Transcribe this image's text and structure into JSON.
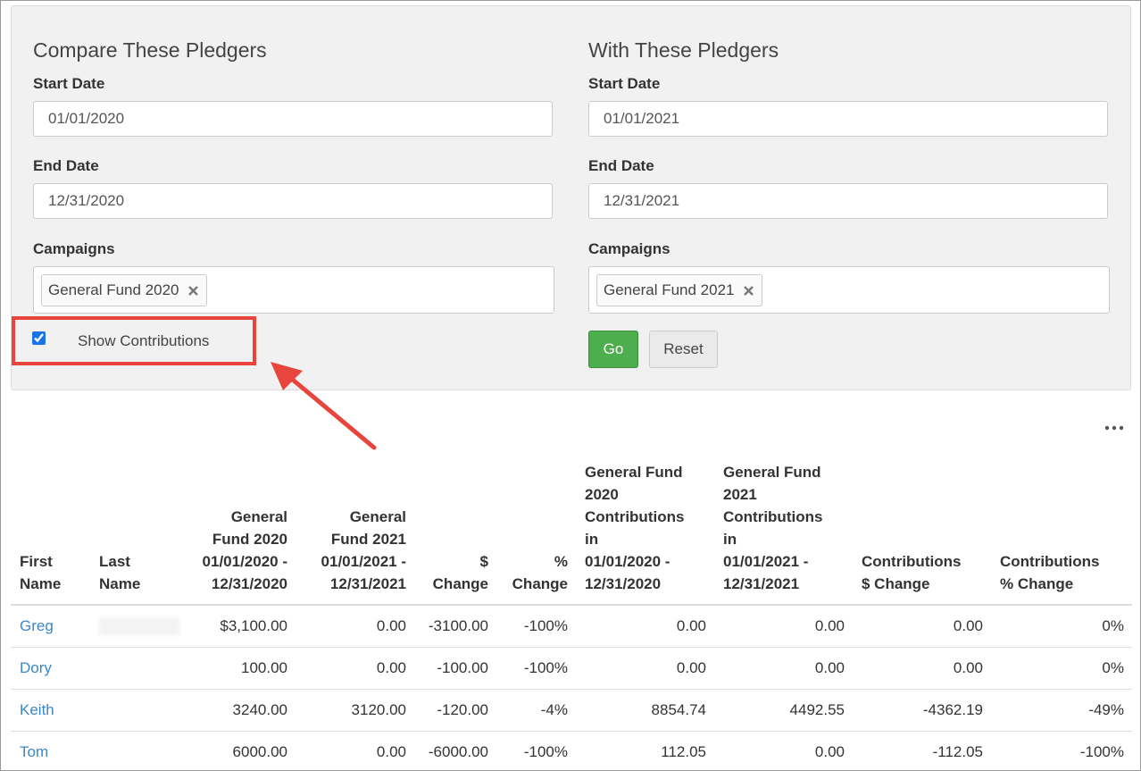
{
  "left": {
    "title": "Compare These Pledgers",
    "start_label": "Start Date",
    "start": "01/01/2020",
    "end_label": "End Date",
    "end": "12/31/2020",
    "campaigns_label": "Campaigns",
    "campaign": "General Fund 2020",
    "checkbox": "Show Contributions"
  },
  "right": {
    "title": "With These Pledgers",
    "start_label": "Start Date",
    "start": "01/01/2021",
    "end_label": "End Date",
    "end": "12/31/2021",
    "campaigns_label": "Campaigns",
    "campaign": "General Fund 2021"
  },
  "buttons": {
    "go": "Go",
    "reset": "Reset"
  },
  "table": {
    "headers": [
      [
        "First",
        "Name"
      ],
      [
        "Last",
        "Name"
      ],
      [
        "General",
        "Fund 2020",
        "01/01/2020 -",
        "12/31/2020"
      ],
      [
        "General",
        "Fund 2021",
        "01/01/2021 -",
        "12/31/2021"
      ],
      [
        "$",
        "Change"
      ],
      [
        "%",
        "Change"
      ],
      [
        "General Fund",
        "2020",
        "Contributions",
        "in",
        "01/01/2020 -",
        "12/31/2020"
      ],
      [
        "General Fund",
        "2021",
        "Contributions",
        "in",
        "01/01/2021 -",
        "12/31/2021"
      ],
      [
        "Contributions",
        "$ Change"
      ],
      [
        "Contributions",
        "% Change"
      ]
    ],
    "rows": [
      [
        "Greg",
        null,
        "$3,100.00",
        "0.00",
        "-3100.00",
        "-100%",
        "0.00",
        "0.00",
        "0.00",
        "0%"
      ],
      [
        "Dory",
        null,
        "100.00",
        "0.00",
        "-100.00",
        "-100%",
        "0.00",
        "0.00",
        "0.00",
        "0%"
      ],
      [
        "Keith",
        null,
        "3240.00",
        "3120.00",
        "-120.00",
        "-4%",
        "8854.74",
        "4492.55",
        "-4362.19",
        "-49%"
      ],
      [
        "Tom",
        null,
        "6000.00",
        "0.00",
        "-6000.00",
        "-100%",
        "112.05",
        "0.00",
        "-112.05",
        "-100%"
      ]
    ]
  }
}
